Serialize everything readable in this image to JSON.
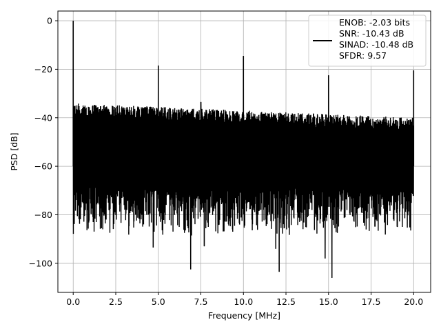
{
  "chart_data": {
    "type": "line",
    "title": "",
    "xlabel": "Frequency [MHz]",
    "ylabel": "PSD [dB]",
    "xlim": [
      -0.9,
      21.0
    ],
    "ylim": [
      -112,
      4
    ],
    "xticks": [
      0.0,
      2.5,
      5.0,
      7.5,
      10.0,
      12.5,
      15.0,
      17.5,
      20.0
    ],
    "xtick_labels": [
      "0.0",
      "2.5",
      "5.0",
      "7.5",
      "10.0",
      "12.5",
      "15.0",
      "17.5",
      "20.0"
    ],
    "yticks": [
      0,
      -20,
      -40,
      -60,
      -80,
      -100
    ],
    "ytick_labels": [
      "0",
      "−20",
      "−40",
      "−60",
      "−80",
      "−100"
    ],
    "grid": true,
    "legend_position": "upper right",
    "legend_lines": [
      "ENOB: -2.03 bits",
      "SNR: -10.43 dB",
      "SINAD: -10.48 dB",
      "SFDR: 9.57"
    ],
    "series_color": "#000000",
    "noise_band": {
      "x_start": 0.0,
      "x_end": 20.0,
      "upper_start": -34,
      "upper_end": -40,
      "lower_typical": -80
    },
    "spikes": [
      {
        "x": 0.0,
        "y": 0.0
      },
      {
        "x": 5.0,
        "y": -18.5
      },
      {
        "x": 7.5,
        "y": -33.5
      },
      {
        "x": 10.0,
        "y": -14.5
      },
      {
        "x": 15.0,
        "y": -22.5
      },
      {
        "x": 20.0,
        "y": -20.5
      }
    ],
    "dips": [
      {
        "x": 4.7,
        "y": -93.5
      },
      {
        "x": 6.9,
        "y": -102.5
      },
      {
        "x": 12.1,
        "y": -103.5
      },
      {
        "x": 14.8,
        "y": -98.0
      },
      {
        "x": 15.2,
        "y": -106.0
      },
      {
        "x": 7.7,
        "y": -93.0
      },
      {
        "x": 11.9,
        "y": -94.0
      }
    ]
  }
}
